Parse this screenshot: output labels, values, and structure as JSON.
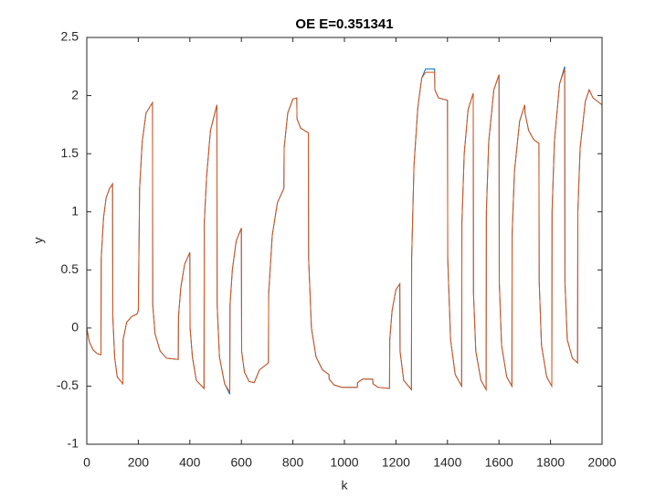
{
  "chart_data": {
    "type": "line",
    "title": "OE E=0.351341",
    "x_label": "k",
    "y_label": "y",
    "x": [
      0,
      10,
      25,
      40,
      55,
      56,
      65,
      75,
      88,
      100,
      101,
      108,
      118,
      140,
      141,
      155,
      175,
      195,
      200,
      205,
      215,
      230,
      255,
      256,
      265,
      285,
      310,
      355,
      356,
      365,
      380,
      400,
      401,
      410,
      425,
      455,
      456,
      465,
      480,
      505,
      506,
      515,
      535,
      555,
      556,
      565,
      580,
      600,
      601,
      612,
      630,
      650,
      670,
      705,
      706,
      720,
      740,
      765,
      766,
      780,
      800,
      815,
      816,
      830,
      860,
      861,
      872,
      890,
      915,
      940,
      941,
      960,
      990,
      1050,
      1051,
      1070,
      1110,
      1111,
      1130,
      1175,
      1176,
      1185,
      1200,
      1215,
      1216,
      1230,
      1260,
      1261,
      1270,
      1285,
      1300,
      1315,
      1350,
      1351,
      1365,
      1400,
      1401,
      1412,
      1430,
      1455,
      1456,
      1465,
      1480,
      1500,
      1501,
      1510,
      1530,
      1550,
      1551,
      1560,
      1580,
      1600,
      1601,
      1610,
      1630,
      1650,
      1651,
      1660,
      1680,
      1700,
      1701,
      1715,
      1735,
      1755,
      1756,
      1765,
      1785,
      1805,
      1806,
      1815,
      1835,
      1855,
      1856,
      1865,
      1885,
      1905,
      1906,
      1915,
      1935,
      1950,
      1965,
      2000
    ],
    "series": [
      {
        "color": "#0072BD",
        "values": [
          0,
          -0.12,
          -0.19,
          -0.22,
          -0.23,
          0.6,
          0.95,
          1.12,
          1.2,
          1.24,
          0.1,
          -0.25,
          -0.42,
          -0.48,
          -0.1,
          0.05,
          0.1,
          0.12,
          0.15,
          1.2,
          1.6,
          1.85,
          1.94,
          0.2,
          -0.05,
          -0.2,
          -0.26,
          -0.27,
          0.1,
          0.35,
          0.55,
          0.65,
          0,
          -0.25,
          -0.45,
          -0.52,
          0.9,
          1.3,
          1.7,
          1.92,
          0.2,
          -0.25,
          -0.48,
          -0.57,
          0.2,
          0.5,
          0.75,
          0.86,
          -0.2,
          -0.38,
          -0.46,
          -0.47,
          -0.36,
          -0.3,
          0.3,
          0.8,
          1.08,
          1.2,
          1.55,
          1.85,
          1.97,
          1.98,
          1.8,
          1.72,
          1.68,
          0.6,
          0,
          -0.25,
          -0.36,
          -0.4,
          -0.44,
          -0.49,
          -0.51,
          -0.51,
          -0.47,
          -0.44,
          -0.44,
          -0.48,
          -0.51,
          -0.52,
          -0.1,
          0.15,
          0.33,
          0.38,
          -0.2,
          -0.45,
          -0.53,
          0.6,
          1.4,
          1.9,
          2.15,
          2.23,
          2.23,
          2.05,
          1.98,
          1.96,
          0.6,
          -0.1,
          -0.4,
          -0.5,
          0.9,
          1.5,
          1.88,
          2.02,
          0.3,
          -0.2,
          -0.45,
          -0.53,
          1.0,
          1.6,
          2.05,
          2.18,
          0.4,
          -0.15,
          -0.42,
          -0.5,
          0.8,
          1.35,
          1.78,
          1.92,
          1.85,
          1.7,
          1.62,
          1.59,
          0.4,
          -0.15,
          -0.42,
          -0.5,
          1.0,
          1.6,
          2.1,
          2.25,
          0.4,
          -0.1,
          -0.26,
          -0.3,
          1.0,
          1.55,
          1.95,
          2.05,
          1.98,
          1.92
        ]
      },
      {
        "color": "#D95319",
        "values": [
          0,
          -0.12,
          -0.19,
          -0.22,
          -0.23,
          0.6,
          0.95,
          1.12,
          1.2,
          1.24,
          0.1,
          -0.25,
          -0.42,
          -0.48,
          -0.1,
          0.05,
          0.1,
          0.12,
          0.15,
          1.2,
          1.6,
          1.85,
          1.94,
          0.2,
          -0.05,
          -0.2,
          -0.26,
          -0.27,
          0.1,
          0.35,
          0.55,
          0.65,
          0,
          -0.25,
          -0.45,
          -0.52,
          0.9,
          1.3,
          1.7,
          1.92,
          0.2,
          -0.25,
          -0.48,
          -0.55,
          0.2,
          0.5,
          0.75,
          0.86,
          -0.2,
          -0.38,
          -0.46,
          -0.47,
          -0.36,
          -0.3,
          0.3,
          0.8,
          1.08,
          1.2,
          1.55,
          1.85,
          1.97,
          1.98,
          1.8,
          1.72,
          1.68,
          0.6,
          0,
          -0.25,
          -0.36,
          -0.4,
          -0.44,
          -0.49,
          -0.51,
          -0.51,
          -0.47,
          -0.44,
          -0.44,
          -0.48,
          -0.51,
          -0.52,
          -0.1,
          0.15,
          0.33,
          0.38,
          -0.2,
          -0.45,
          -0.53,
          0.6,
          1.4,
          1.9,
          2.15,
          2.2,
          2.2,
          2.05,
          1.98,
          1.96,
          0.6,
          -0.1,
          -0.4,
          -0.5,
          0.9,
          1.5,
          1.88,
          2.02,
          0.3,
          -0.2,
          -0.45,
          -0.53,
          1.0,
          1.6,
          2.05,
          2.18,
          0.4,
          -0.15,
          -0.42,
          -0.5,
          0.8,
          1.35,
          1.78,
          1.92,
          1.85,
          1.7,
          1.62,
          1.59,
          0.4,
          -0.15,
          -0.42,
          -0.5,
          1.0,
          1.6,
          2.1,
          2.23,
          0.4,
          -0.1,
          -0.26,
          -0.3,
          1.0,
          1.55,
          1.95,
          2.05,
          1.98,
          1.92
        ]
      }
    ],
    "xlim": [
      0,
      2000
    ],
    "xticks": [
      0,
      200,
      400,
      600,
      800,
      1000,
      1200,
      1400,
      1600,
      1800,
      2000
    ],
    "ylim": [
      -1,
      2.5
    ],
    "yticks": [
      -1,
      -0.5,
      0,
      0.5,
      1,
      1.5,
      2,
      2.5
    ],
    "grid": false
  }
}
